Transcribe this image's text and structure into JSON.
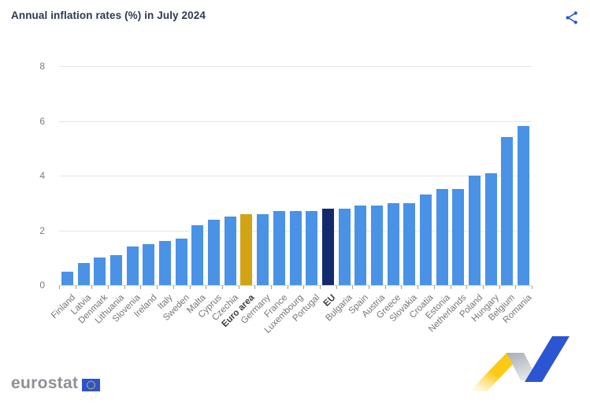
{
  "header": {
    "title": "Annual inflation rates (%) in July 2024",
    "share_icon": "share-icon"
  },
  "chart_data": {
    "type": "bar",
    "title": "Annual inflation rates (%) in July 2024",
    "categories": [
      "Finland",
      "Latvia",
      "Denmark",
      "Lithuania",
      "Slovenia",
      "Ireland",
      "Italy",
      "Sweden",
      "Malta",
      "Cyprus",
      "Czechia",
      "Euro area",
      "Germany",
      "France",
      "Luxembourg",
      "Portugal",
      "EU",
      "Bulgaria",
      "Spain",
      "Austria",
      "Greece",
      "Slovakia",
      "Croatia",
      "Estonia",
      "Netherlands",
      "Poland",
      "Hungary",
      "Belgium",
      "Romania"
    ],
    "values": [
      0.5,
      0.8,
      1.0,
      1.1,
      1.4,
      1.5,
      1.6,
      1.7,
      2.2,
      2.4,
      2.5,
      2.6,
      2.6,
      2.7,
      2.7,
      2.7,
      2.8,
      2.8,
      2.9,
      2.9,
      3.0,
      3.0,
      3.3,
      3.5,
      3.5,
      4.0,
      4.1,
      5.4,
      5.8
    ],
    "xlabel": "",
    "ylabel": "",
    "ylim": [
      0,
      8
    ],
    "yticks": [
      0,
      2,
      4,
      6,
      8
    ],
    "grid": true,
    "legend": false,
    "label_rotation_deg": -45,
    "colors": {
      "default_bar": "#4a92e6",
      "euro_area_bar": "#d2a415",
      "eu_bar": "#142a6e"
    },
    "highlighted_categories": {
      "Euro area": "euro_area_bar",
      "EU": "eu_bar"
    },
    "bold_labels": [
      "Euro area",
      "EU"
    ]
  },
  "footer": {
    "brand_text": "eurostat",
    "flag_icon": "eu-flag-icon",
    "decoration_icon": "trend-zigzag-graphic"
  },
  "icon_colors": {
    "share": "#2b5ac9",
    "flag_blue": "#2d53cc",
    "flag_stars": "#ffd617",
    "zigzag_yellow": "#fdc913",
    "zigzag_gray": "#b9bec4",
    "zigzag_blue": "#2c55d3"
  }
}
